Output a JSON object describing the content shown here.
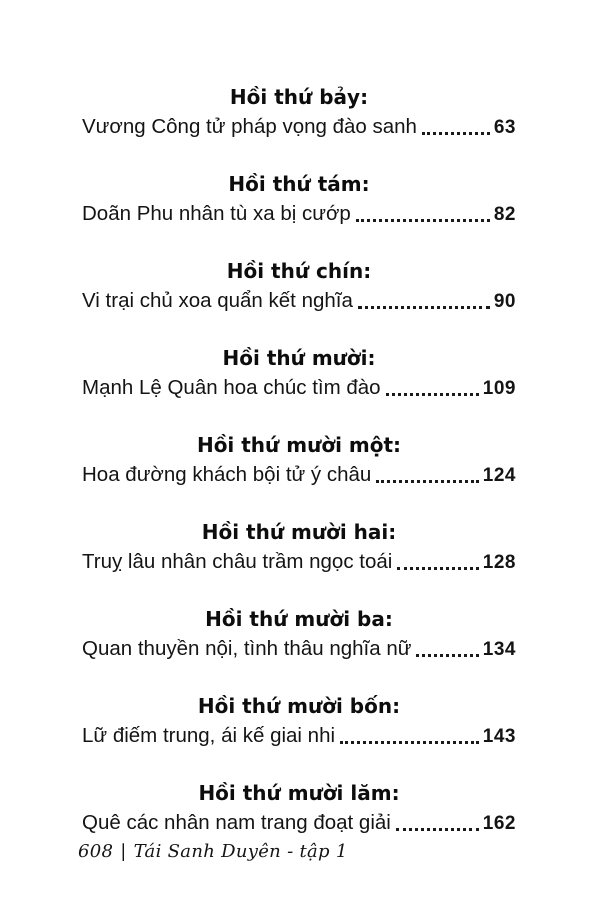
{
  "toc": {
    "sections": [
      {
        "heading": "Hồi thứ bảy:",
        "title": "Vương Công tử pháp vọng đào sanh",
        "page": "63"
      },
      {
        "heading": "Hồi thứ tám:",
        "title": "Doãn Phu nhân tù xa bị cướp",
        "page": "82"
      },
      {
        "heading": "Hồi thứ chín:",
        "title": "Vi trại chủ xoa quẩn kết nghĩa",
        "page": "90"
      },
      {
        "heading": "Hồi thứ mười:",
        "title": "Mạnh Lệ Quân hoa chúc tìm đào",
        "page": "109"
      },
      {
        "heading": "Hồi thứ mười một:",
        "title": "Hoa đường khách bội tử ý châu",
        "page": "124"
      },
      {
        "heading": "Hồi thứ mười hai:",
        "title": "Truỵ lâu nhân châu trầm ngọc toái",
        "page": "128"
      },
      {
        "heading": "Hồi thứ mười ba:",
        "title": "Quan thuyền nội, tình thâu nghĩa nữ",
        "page": "134"
      },
      {
        "heading": "Hồi thứ mười bốn:",
        "title": "Lữ điếm trung, ái kế giai nhi",
        "page": "143"
      },
      {
        "heading": "Hồi thứ mười lăm:",
        "title": "Quê các nhân nam trang đoạt giải",
        "page": "162"
      }
    ]
  },
  "footer": {
    "page_number": "608",
    "separator": "|",
    "book_title": "Tái Sanh Duyên - tập 1"
  }
}
